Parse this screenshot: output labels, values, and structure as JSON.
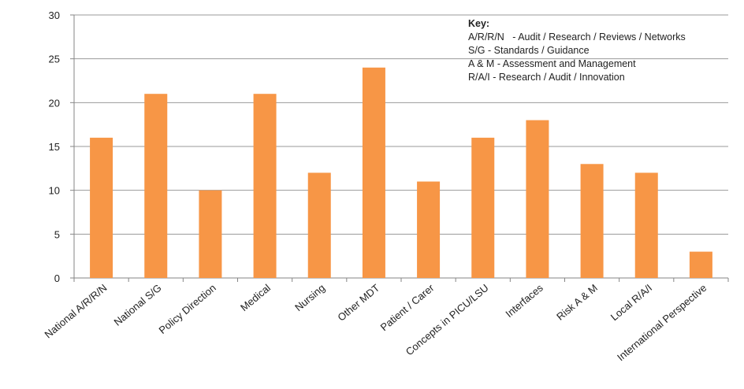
{
  "chart_data": {
    "type": "bar",
    "categories": [
      "National A/R/R/N",
      "National S/G",
      "Policy Direction",
      "Medical",
      "Nursing",
      "Other MDT",
      "Patient / Carer",
      "Concepts in PICU/LSU",
      "Interfaces",
      "Risk A & M",
      "Local R/A/I",
      "International Perspective"
    ],
    "values": [
      16,
      21,
      10,
      21,
      12,
      24,
      11,
      16,
      18,
      13,
      12,
      3
    ],
    "ylim": [
      0,
      30
    ],
    "yticks": [
      0,
      5,
      10,
      15,
      20,
      25,
      30
    ],
    "grid": true,
    "bar_color": "#F79646",
    "legend": false,
    "key": {
      "title": "Key:",
      "lines": [
        "A/R/R/N   - Audit / Research / Reviews / Networks",
        "S/G - Standards / Guidance",
        "A & M - Assessment and Management",
        "R/A/I - Research / Audit / Innovation"
      ]
    }
  }
}
